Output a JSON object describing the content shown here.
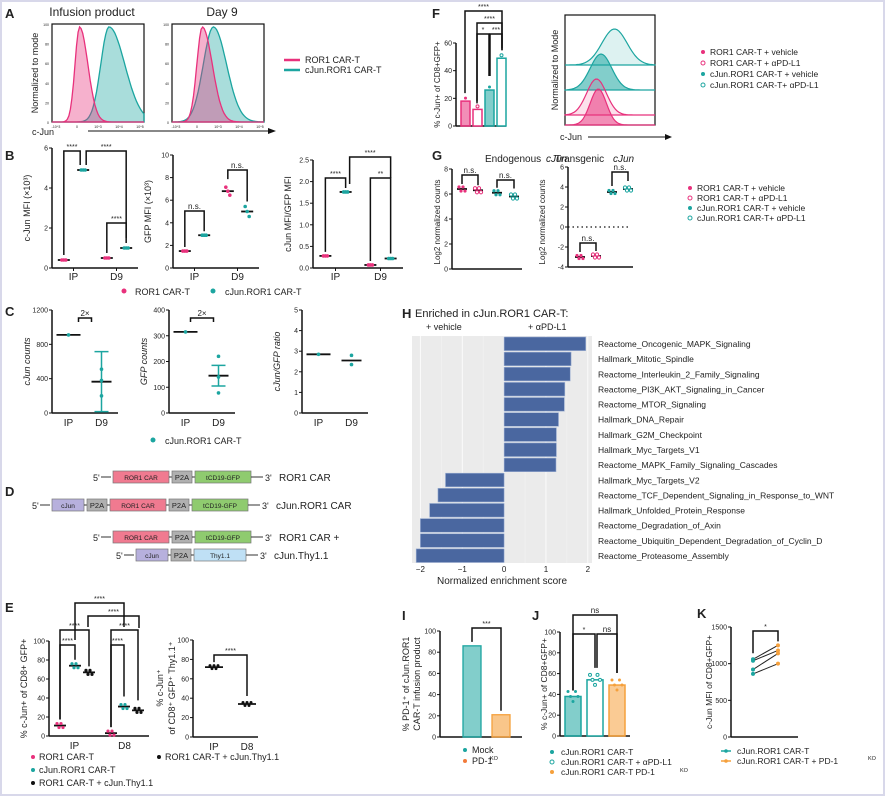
{
  "panels": {
    "A": {
      "label": "A",
      "titles": [
        "Infusion product",
        "Day 9"
      ],
      "ylabel": "Normalized to mode",
      "xlabel": "c-Jun",
      "legend": [
        "ROR1 CAR-T",
        "cJun.ROR1 CAR-T"
      ],
      "y_ticks": [
        "0",
        "20",
        "40",
        "60",
        "80",
        "100"
      ],
      "x_ticks": [
        "-10^3",
        "0",
        "10^3",
        "10^4",
        "10^5"
      ]
    },
    "B": {
      "label": "B",
      "legend": [
        "ROR1 CAR-T",
        "cJun.ROR1 CAR-T"
      ],
      "x_categories": [
        "IP",
        "D9"
      ]
    },
    "C": {
      "label": "C",
      "legend": [
        "cJun.ROR1 CAR-T"
      ],
      "x_categories": [
        "IP",
        "D9"
      ]
    },
    "D": {
      "label": "D",
      "constructs": [
        {
          "name": "ROR1 CAR",
          "five": "5'",
          "three": "3'",
          "blocks": [
            "ROR1 CAR",
            "P2A",
            "tCD19-GFP"
          ]
        },
        {
          "name": "cJun.ROR1 CAR",
          "five": "5'",
          "three": "3'",
          "blocks": [
            "cJun",
            "P2A",
            "ROR1 CAR",
            "P2A",
            "tCD19-GFP"
          ]
        },
        {
          "name": "ROR1 CAR +",
          "five": "5'",
          "three": "3'",
          "blocks": [
            "ROR1 CAR",
            "P2A",
            "tCD19-GFP"
          ]
        },
        {
          "name": "cJun.Thy1.1",
          "five": "5'",
          "three": "3'",
          "blocks": [
            "cJun",
            "P2A",
            "Thy1.1"
          ]
        }
      ]
    },
    "E": {
      "label": "E",
      "legend": [
        "ROR1 CAR-T",
        "cJun.ROR1 CAR-T",
        "ROR1 CAR-T + cJun.Thy1.1"
      ],
      "legend2": "ROR1 CAR-T + cJun.Thy1.1"
    },
    "F": {
      "label": "F",
      "ylabel": "% c-Jun+ of CD8+GFP+",
      "hist_ylabel": "Normalized to Mode",
      "hist_xlabel": "c-Jun",
      "legend": [
        "ROR1 CAR-T + vehicle",
        "ROR1 CAR-T + αPD-L1",
        "cJun.ROR1 CAR-T + vehicle",
        "cJun.ROR1 CAR-T+ αPD-L1"
      ]
    },
    "G": {
      "label": "G",
      "titles": [
        "Endogenous cJun",
        "Transgenic cJun"
      ],
      "ylabel": "Log2 normalized counts",
      "legend": [
        "ROR1 CAR-T + vehicle",
        "ROR1 CAR-T + αPD-L1",
        "cJun.ROR1 CAR-T + vehicle",
        "cJun.ROR1 CAR-T+ αPD-L1"
      ]
    },
    "H": {
      "label": "H",
      "title": "Enriched in cJun.ROR1 CAR-T:",
      "left_header": "+ vehicle",
      "right_header": "+ αPD-L1"
    },
    "I": {
      "label": "I",
      "legend": [
        "Mock",
        "PD-1KO"
      ]
    },
    "J": {
      "label": "J",
      "legend": [
        "cJun.ROR1 CAR-T",
        "cJun.ROR1 CAR-T + αPD-L1",
        "cJun.ROR1 CAR-T PD-1KO"
      ]
    },
    "K": {
      "label": "K",
      "legend": [
        "cJun.ROR1 CAR-T",
        "cJun.ROR1 CAR-T + PD-1KO"
      ]
    }
  },
  "colors": {
    "ror1": "#e8317c",
    "cjun": "#1ca5a0",
    "thy": "#111111",
    "orange": "#f5a03c",
    "hbar": "#4a67a0",
    "hbg": "#ebebeb"
  },
  "chart_data": [
    {
      "panel": "B1",
      "type": "scatter",
      "ylabel": "c-Jun MFI (×10³)",
      "categories": [
        "IP",
        "D9"
      ],
      "ylim": [
        0,
        6
      ],
      "yticks": [
        0,
        2,
        4,
        6
      ],
      "series": [
        {
          "name": "ROR1 CAR-T",
          "values": [
            0.4,
            0.5
          ]
        },
        {
          "name": "cJun.ROR1 CAR-T",
          "values": [
            4.9,
            1.0
          ]
        }
      ],
      "annotations": [
        "****",
        "****",
        "****"
      ]
    },
    {
      "panel": "B2",
      "type": "scatter",
      "ylabel": "GFP MFI (×10³)",
      "categories": [
        "IP",
        "D9"
      ],
      "ylim": [
        0,
        10
      ],
      "yticks": [
        0,
        2,
        4,
        6,
        8,
        10
      ],
      "series": [
        {
          "name": "ROR1 CAR-T",
          "values": [
            1.5,
            6.8
          ]
        },
        {
          "name": "cJun.ROR1 CAR-T",
          "values": [
            2.9,
            5.0
          ]
        }
      ],
      "annotations": [
        "n.s.",
        "n.s."
      ]
    },
    {
      "panel": "B3",
      "type": "scatter",
      "ylabel": "cJun MFI/GFP MFI",
      "categories": [
        "IP",
        "D9"
      ],
      "ylim": [
        0,
        2.5
      ],
      "yticks": [
        "0.0",
        "0.5",
        "1.0",
        "1.5",
        "2.0",
        "2.5"
      ],
      "series": [
        {
          "name": "ROR1 CAR-T",
          "values": [
            0.28,
            0.07
          ]
        },
        {
          "name": "cJun.ROR1 CAR-T",
          "values": [
            1.76,
            0.22
          ]
        }
      ],
      "annotations": [
        "****",
        "**",
        "****"
      ]
    },
    {
      "panel": "C1",
      "type": "scatter",
      "ylabel": "cJun counts",
      "categories": [
        "IP",
        "D9"
      ],
      "ylim": [
        0,
        1200
      ],
      "yticks": [
        0,
        400,
        800,
        1200
      ],
      "series": [
        {
          "name": "cJun.ROR1 CAR-T",
          "values": [
            910,
            365
          ]
        }
      ],
      "annotations": [
        "2×"
      ]
    },
    {
      "panel": "C2",
      "type": "scatter",
      "ylabel": "GFP counts",
      "categories": [
        "IP",
        "D9"
      ],
      "ylim": [
        0,
        400
      ],
      "yticks": [
        0,
        100,
        200,
        300,
        400
      ],
      "series": [
        {
          "name": "cJun.ROR1 CAR-T",
          "values": [
            315,
            145
          ]
        }
      ],
      "annotations": [
        "2×"
      ]
    },
    {
      "panel": "C3",
      "type": "scatter",
      "ylabel": "cJun/GFP ratio",
      "categories": [
        "IP",
        "D9"
      ],
      "ylim": [
        0,
        5
      ],
      "yticks": [
        0,
        1,
        2,
        3,
        4,
        5
      ],
      "series": [
        {
          "name": "cJun.ROR1 CAR-T",
          "values": [
            2.85,
            2.55
          ]
        }
      ]
    },
    {
      "panel": "E1",
      "type": "scatter",
      "ylabel": "% c-Jun+ of CD8+ GFP+",
      "categories": [
        "IP",
        "D8"
      ],
      "ylim": [
        0,
        100
      ],
      "yticks": [
        0,
        20,
        40,
        60,
        80,
        100
      ],
      "series": [
        {
          "name": "ROR1 CAR-T",
          "values": [
            11,
            3
          ]
        },
        {
          "name": "cJun.ROR1 CAR-T",
          "values": [
            74,
            31
          ]
        },
        {
          "name": "ROR1 CAR-T + cJun.Thy1.1",
          "values": [
            67,
            27
          ]
        }
      ],
      "annotations": [
        "****",
        "****",
        "****",
        "****",
        "****",
        "****"
      ]
    },
    {
      "panel": "E2",
      "type": "scatter",
      "ylabel": "% c-Jun+ of CD8+ GFP+ Thy1.1+",
      "categories": [
        "IP",
        "D8"
      ],
      "ylim": [
        0,
        100
      ],
      "yticks": [
        0,
        20,
        40,
        60,
        80,
        100
      ],
      "series": [
        {
          "name": "ROR1 CAR-T + cJun.Thy1.1",
          "values": [
            72,
            34
          ]
        }
      ],
      "annotations": [
        "****"
      ]
    },
    {
      "panel": "F",
      "type": "bar",
      "ylabel": "% c-Jun+ of CD8+GFP+",
      "ylim": [
        0,
        60
      ],
      "yticks": [
        0,
        20,
        40,
        60
      ],
      "categories": [
        "ROR1 CAR-T + vehicle",
        "ROR1 CAR-T + αPD-L1",
        "cJun.ROR1 CAR-T + vehicle",
        "cJun.ROR1 CAR-T+ αPD-L1"
      ],
      "values": [
        18,
        12,
        26,
        49
      ],
      "annotations": [
        "****",
        "****",
        "*",
        "***"
      ]
    },
    {
      "panel": "G1",
      "type": "scatter",
      "title": "Endogenous cJun",
      "ylabel": "Log2 normalized counts",
      "ylim": [
        0,
        8
      ],
      "yticks": [
        0,
        2,
        4,
        6,
        8
      ],
      "categories": [
        "ROR1 CAR-T + vehicle",
        "ROR1 CAR-T + αPD-L1",
        "cJun.ROR1 CAR-T + vehicle",
        "cJun.ROR1 CAR-T+ αPD-L1"
      ],
      "values": [
        6.4,
        6.3,
        6.1,
        5.8
      ],
      "annotations": [
        "n.s.",
        "n.s."
      ]
    },
    {
      "panel": "G2",
      "type": "scatter",
      "title": "Transgenic cJun",
      "ylabel": "Log2 normalized counts",
      "ylim": [
        -4,
        6
      ],
      "yticks": [
        -4,
        -2,
        0,
        2,
        4,
        6
      ],
      "categories": [
        "ROR1 CAR-T + vehicle",
        "ROR1 CAR-T + αPD-L1",
        "cJun.ROR1 CAR-T + vehicle",
        "cJun.ROR1 CAR-T+ αPD-L1"
      ],
      "values": [
        -3.0,
        -2.9,
        3.5,
        3.8
      ],
      "annotations": [
        "n.s.",
        "n.s."
      ]
    },
    {
      "panel": "H",
      "type": "bar",
      "orientation": "horizontal",
      "title": "Enriched in cJun.ROR1 CAR-T:",
      "xlabel": "Normalized enrichment score",
      "xlim": [
        -2.2,
        2.1
      ],
      "xticks": [
        -2,
        -1,
        0,
        1,
        2
      ],
      "categories": [
        "Reactome_Oncogenic_MAPK_Signaling",
        "Hallmark_Mitotic_Spindle",
        "Reactome_Interleukin_2_Family_Signaling",
        "Reactome_PI3K_AKT_Signaling_in_Cancer",
        "Reactome_MTOR_Signaling",
        "Hallmark_DNA_Repair",
        "Hallmark_G2M_Checkpoint",
        "Hallmark_Myc_Targets_V1",
        "Reactome_MAPK_Family_Signaling_Cascades",
        "Hallmark_Myc_Targets_V2",
        "Reactome_TCF_Dependent_Signaling_in_Response_to_WNT",
        "Hallmark_Unfolded_Protein_Response",
        "Reactome_Degradation_of_Axin",
        "Reactome_Ubiquitin_Dependent_Degradation_of_Cyclin_D",
        "Reactome_Proteasome_Assembly"
      ],
      "values": [
        1.95,
        1.6,
        1.58,
        1.45,
        1.44,
        1.3,
        1.25,
        1.25,
        1.24,
        -1.4,
        -1.58,
        -1.78,
        -2.0,
        -2.0,
        -2.1
      ]
    },
    {
      "panel": "I",
      "type": "bar",
      "ylabel": "% PD-1+ of cJun.ROR1 CAR-T infusion product",
      "ylim": [
        0,
        100
      ],
      "yticks": [
        0,
        20,
        40,
        60,
        80,
        100
      ],
      "categories": [
        "Mock",
        "PD-1KO"
      ],
      "values": [
        86,
        21
      ],
      "annotations": [
        "***"
      ]
    },
    {
      "panel": "J",
      "type": "bar",
      "ylabel": "% c-Jun+ of CD8+GFP+",
      "ylim": [
        0,
        100
      ],
      "yticks": [
        0,
        20,
        40,
        60,
        80,
        100
      ],
      "categories": [
        "cJun.ROR1 CAR-T",
        "cJun.ROR1 CAR-T + αPD-L1",
        "cJun.ROR1 CAR-T PD-1KO"
      ],
      "values": [
        38,
        54,
        49
      ],
      "annotations": [
        "ns",
        "*",
        "ns"
      ]
    },
    {
      "panel": "K",
      "type": "line",
      "ylabel": "c-Jun MFI of CD8+GFP+",
      "ylim": [
        0,
        1500
      ],
      "yticks": [
        0,
        500,
        1000,
        1500
      ],
      "categories": [
        "cJun.ROR1 CAR-T",
        "cJun.ROR1 CAR-T + PD-1KO"
      ],
      "pairs": [
        [
          1060,
          1250
        ],
        [
          1040,
          1180
        ],
        [
          920,
          1140
        ],
        [
          860,
          1000
        ]
      ],
      "annotations": [
        "*"
      ]
    }
  ]
}
